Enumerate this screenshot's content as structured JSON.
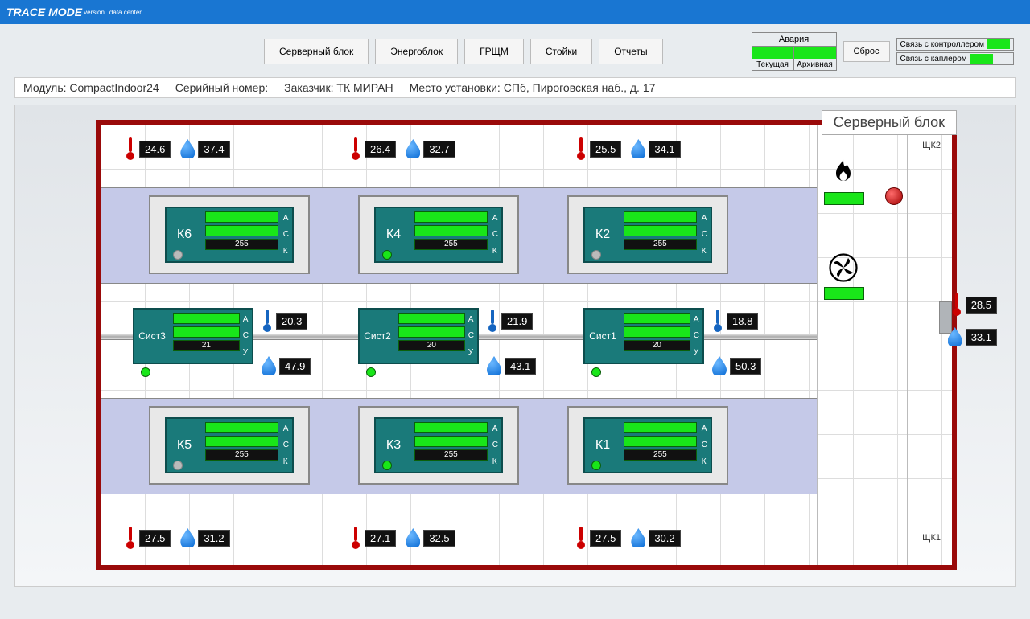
{
  "brand": {
    "name": "TRACE MODE",
    "version": "version",
    "suffix": "data center"
  },
  "nav": {
    "btn1": "Серверный блок",
    "btn2": "Энергоблок",
    "btn3": "ГРЩМ",
    "btn4": "Стойки",
    "btn5": "Отчеты"
  },
  "alarm": {
    "title": "Авария",
    "current": "Текущая",
    "archive": "Архивная",
    "reset": "Сброс"
  },
  "status": {
    "controller": "Связь с контроллером",
    "coupler": "Связь с каплером"
  },
  "info": {
    "module_lbl": "Модуль:",
    "module": "CompactIndoor24",
    "serial_lbl": "Серийный номер:",
    "serial": "",
    "customer_lbl": "Заказчик:",
    "customer": "ТК МИРАН",
    "location_lbl": "Место установки:",
    "location": "СПб, Пироговская наб., д. 17"
  },
  "title": "Серверный блок",
  "sensors_top": [
    {
      "t": "24.6",
      "h": "37.4"
    },
    {
      "t": "26.4",
      "h": "32.7"
    },
    {
      "t": "25.5",
      "h": "34.1"
    }
  ],
  "sensors_mid": [
    {
      "t": "20.3",
      "h": "47.9"
    },
    {
      "t": "21.9",
      "h": "43.1"
    },
    {
      "t": "18.8",
      "h": "50.3"
    }
  ],
  "sensors_bot": [
    {
      "t": "27.5",
      "h": "31.2"
    },
    {
      "t": "27.1",
      "h": "32.5"
    },
    {
      "t": "27.5",
      "h": "30.2"
    }
  ],
  "ext": {
    "t": "28.5",
    "h": "33.1"
  },
  "units_top": [
    {
      "name": "К6",
      "val": "255",
      "led": "gray"
    },
    {
      "name": "К4",
      "val": "255",
      "led": "green"
    },
    {
      "name": "К2",
      "val": "255",
      "led": "gray"
    }
  ],
  "units_bot": [
    {
      "name": "К5",
      "val": "255",
      "led": "gray"
    },
    {
      "name": "К3",
      "val": "255",
      "led": "green"
    },
    {
      "name": "К1",
      "val": "255",
      "led": "green"
    }
  ],
  "sists": [
    {
      "name": "Сист3",
      "val": "21"
    },
    {
      "name": "Сист2",
      "val": "20"
    },
    {
      "name": "Сист1",
      "val": "20"
    }
  ],
  "ask": {
    "a": "А",
    "s": "С",
    "k": "К",
    "u": "У"
  },
  "shk": {
    "top": "ЩК2",
    "bot": "ЩК1"
  },
  "colors": {
    "ok": "#19e619",
    "wall": "#9a0a0a",
    "unit": "#1a7a7a"
  }
}
